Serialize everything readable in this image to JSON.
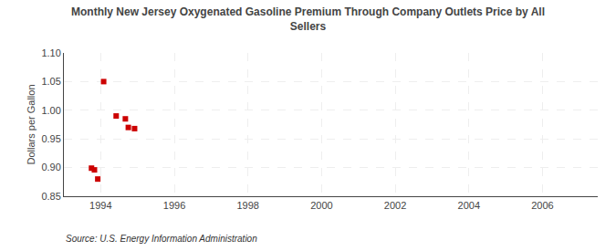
{
  "chart_data": {
    "type": "scatter",
    "title": "Monthly New Jersey Oxygenated Gasoline Premium Through Company Outlets Price by All\nSellers",
    "ylabel": "Dollars per Gallon",
    "annotations": [
      "Source: U.S. Energy Information Administration"
    ],
    "x": [
      1993.75,
      1993.83,
      1993.92,
      1994.08,
      1994.42,
      1994.67,
      1994.75,
      1994.92
    ],
    "values": [
      0.899,
      0.896,
      0.88,
      1.05,
      0.99,
      0.985,
      0.97,
      0.968
    ],
    "color": "#cc0000",
    "marker": "square",
    "xlim": [
      1993.0,
      2007.5
    ],
    "ylim": [
      0.85,
      1.1
    ],
    "xticks": [
      1994,
      1996,
      1998,
      2000,
      2002,
      2004,
      2006
    ],
    "yticks": [
      0.85,
      {
        "value": 0.9,
        "label": "0.90"
      },
      0.95,
      {
        "value": 1.0,
        "label": "1.00"
      },
      1.05,
      {
        "value": 1.1,
        "label": "1.10"
      }
    ],
    "grid": true
  }
}
